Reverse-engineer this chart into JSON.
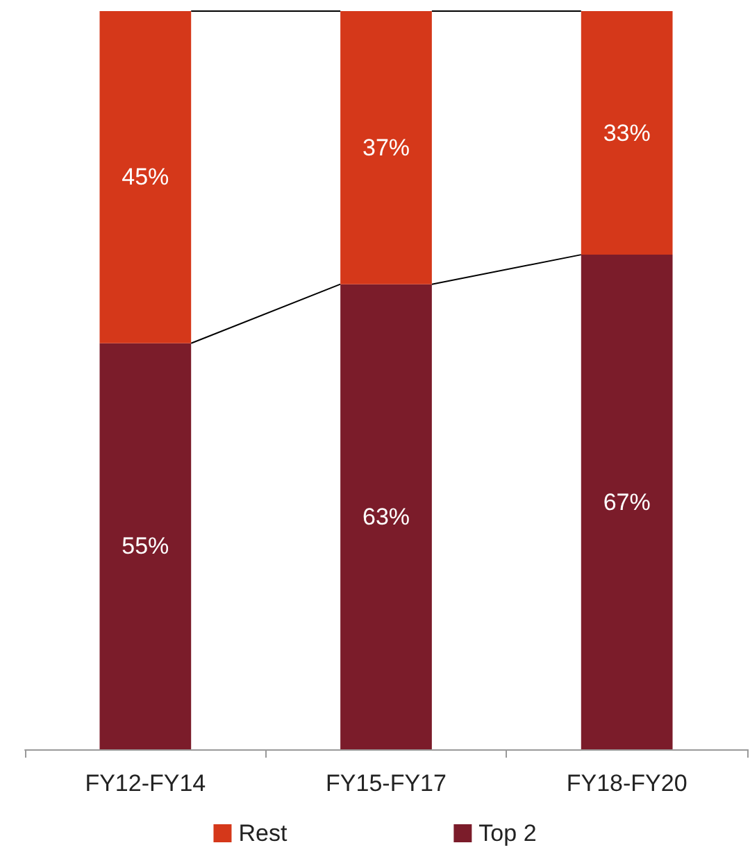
{
  "chart_data": {
    "type": "bar",
    "stacked": true,
    "categories": [
      "FY12-FY14",
      "FY15-FY17",
      "FY18-FY20"
    ],
    "series": [
      {
        "name": "Top 2",
        "color": "#7b1c2a",
        "values": [
          55,
          63,
          67
        ],
        "value_labels": [
          "55%",
          "63%",
          "67%"
        ]
      },
      {
        "name": "Rest",
        "color": "#d5381a",
        "values": [
          45,
          37,
          33
        ],
        "value_labels": [
          "45%",
          "37%",
          "33%"
        ]
      }
    ],
    "legend": "bottom"
  }
}
